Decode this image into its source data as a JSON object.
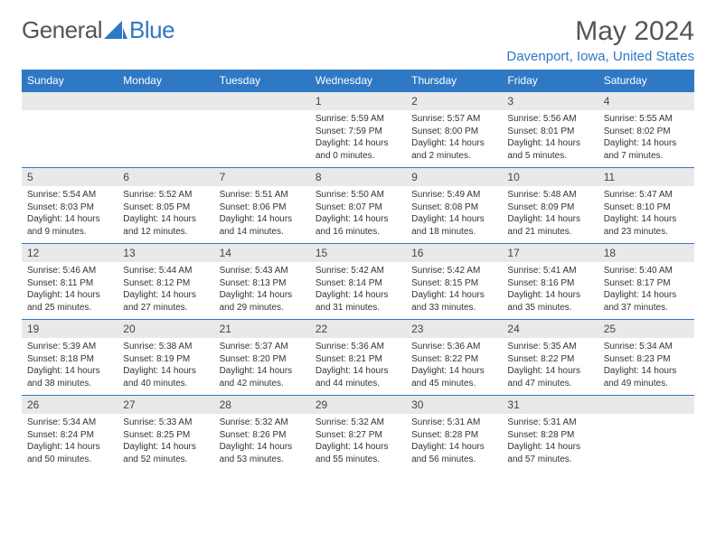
{
  "logo": {
    "text1": "General",
    "text2": "Blue"
  },
  "title": "May 2024",
  "location": "Davenport, Iowa, United States",
  "weekdays": [
    "Sunday",
    "Monday",
    "Tuesday",
    "Wednesday",
    "Thursday",
    "Friday",
    "Saturday"
  ],
  "colors": {
    "accent": "#2f78c4",
    "dayHeader": "#e9e9e9",
    "text": "#333333",
    "bg": "#ffffff"
  },
  "weeks": [
    [
      null,
      null,
      null,
      {
        "n": "1",
        "sr": "5:59 AM",
        "ss": "7:59 PM",
        "dl": "14 hours and 0 minutes."
      },
      {
        "n": "2",
        "sr": "5:57 AM",
        "ss": "8:00 PM",
        "dl": "14 hours and 2 minutes."
      },
      {
        "n": "3",
        "sr": "5:56 AM",
        "ss": "8:01 PM",
        "dl": "14 hours and 5 minutes."
      },
      {
        "n": "4",
        "sr": "5:55 AM",
        "ss": "8:02 PM",
        "dl": "14 hours and 7 minutes."
      }
    ],
    [
      {
        "n": "5",
        "sr": "5:54 AM",
        "ss": "8:03 PM",
        "dl": "14 hours and 9 minutes."
      },
      {
        "n": "6",
        "sr": "5:52 AM",
        "ss": "8:05 PM",
        "dl": "14 hours and 12 minutes."
      },
      {
        "n": "7",
        "sr": "5:51 AM",
        "ss": "8:06 PM",
        "dl": "14 hours and 14 minutes."
      },
      {
        "n": "8",
        "sr": "5:50 AM",
        "ss": "8:07 PM",
        "dl": "14 hours and 16 minutes."
      },
      {
        "n": "9",
        "sr": "5:49 AM",
        "ss": "8:08 PM",
        "dl": "14 hours and 18 minutes."
      },
      {
        "n": "10",
        "sr": "5:48 AM",
        "ss": "8:09 PM",
        "dl": "14 hours and 21 minutes."
      },
      {
        "n": "11",
        "sr": "5:47 AM",
        "ss": "8:10 PM",
        "dl": "14 hours and 23 minutes."
      }
    ],
    [
      {
        "n": "12",
        "sr": "5:46 AM",
        "ss": "8:11 PM",
        "dl": "14 hours and 25 minutes."
      },
      {
        "n": "13",
        "sr": "5:44 AM",
        "ss": "8:12 PM",
        "dl": "14 hours and 27 minutes."
      },
      {
        "n": "14",
        "sr": "5:43 AM",
        "ss": "8:13 PM",
        "dl": "14 hours and 29 minutes."
      },
      {
        "n": "15",
        "sr": "5:42 AM",
        "ss": "8:14 PM",
        "dl": "14 hours and 31 minutes."
      },
      {
        "n": "16",
        "sr": "5:42 AM",
        "ss": "8:15 PM",
        "dl": "14 hours and 33 minutes."
      },
      {
        "n": "17",
        "sr": "5:41 AM",
        "ss": "8:16 PM",
        "dl": "14 hours and 35 minutes."
      },
      {
        "n": "18",
        "sr": "5:40 AM",
        "ss": "8:17 PM",
        "dl": "14 hours and 37 minutes."
      }
    ],
    [
      {
        "n": "19",
        "sr": "5:39 AM",
        "ss": "8:18 PM",
        "dl": "14 hours and 38 minutes."
      },
      {
        "n": "20",
        "sr": "5:38 AM",
        "ss": "8:19 PM",
        "dl": "14 hours and 40 minutes."
      },
      {
        "n": "21",
        "sr": "5:37 AM",
        "ss": "8:20 PM",
        "dl": "14 hours and 42 minutes."
      },
      {
        "n": "22",
        "sr": "5:36 AM",
        "ss": "8:21 PM",
        "dl": "14 hours and 44 minutes."
      },
      {
        "n": "23",
        "sr": "5:36 AM",
        "ss": "8:22 PM",
        "dl": "14 hours and 45 minutes."
      },
      {
        "n": "24",
        "sr": "5:35 AM",
        "ss": "8:22 PM",
        "dl": "14 hours and 47 minutes."
      },
      {
        "n": "25",
        "sr": "5:34 AM",
        "ss": "8:23 PM",
        "dl": "14 hours and 49 minutes."
      }
    ],
    [
      {
        "n": "26",
        "sr": "5:34 AM",
        "ss": "8:24 PM",
        "dl": "14 hours and 50 minutes."
      },
      {
        "n": "27",
        "sr": "5:33 AM",
        "ss": "8:25 PM",
        "dl": "14 hours and 52 minutes."
      },
      {
        "n": "28",
        "sr": "5:32 AM",
        "ss": "8:26 PM",
        "dl": "14 hours and 53 minutes."
      },
      {
        "n": "29",
        "sr": "5:32 AM",
        "ss": "8:27 PM",
        "dl": "14 hours and 55 minutes."
      },
      {
        "n": "30",
        "sr": "5:31 AM",
        "ss": "8:28 PM",
        "dl": "14 hours and 56 minutes."
      },
      {
        "n": "31",
        "sr": "5:31 AM",
        "ss": "8:28 PM",
        "dl": "14 hours and 57 minutes."
      },
      null
    ]
  ],
  "labels": {
    "sunrise": "Sunrise: ",
    "sunset": "Sunset: ",
    "daylight": "Daylight: "
  }
}
